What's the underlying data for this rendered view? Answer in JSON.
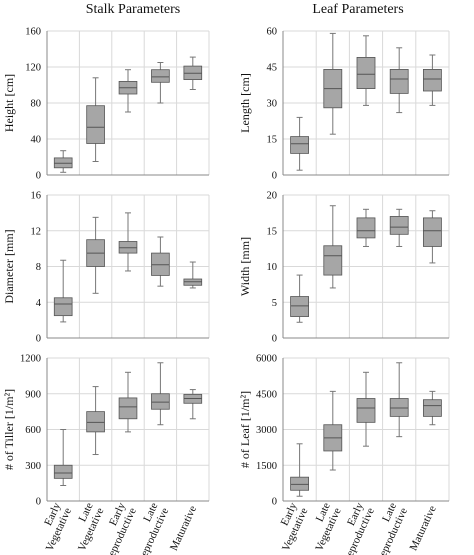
{
  "figure": {
    "column_titles": [
      "Stalk Parameters",
      "Leaf Parameters"
    ],
    "category_labels": [
      [
        "Early",
        "Vegetative"
      ],
      [
        "Late",
        "Vegetative"
      ],
      [
        "Early",
        "Reproductive"
      ],
      [
        "Late",
        "Reproductive"
      ],
      [
        "Maturative"
      ]
    ]
  },
  "colors": {
    "box_fill": "#a6a6a6",
    "box_stroke": "#555555",
    "whisker": "#777777",
    "grid": "#d9d9d9",
    "axis": "#888888"
  },
  "chart_data": [
    {
      "type": "box",
      "panel": "stalk-height",
      "ylabel": "Height [cm]",
      "ylim": [
        0,
        160
      ],
      "yticks": [
        0,
        40,
        80,
        120,
        160
      ],
      "categories": [
        "Early Vegetative",
        "Late Vegetative",
        "Early Reproductive",
        "Late Reproductive",
        "Maturative"
      ],
      "boxes": [
        {
          "min": 3,
          "q1": 8,
          "median": 13,
          "q3": 19,
          "max": 27
        },
        {
          "min": 15,
          "q1": 35,
          "median": 53,
          "q3": 77,
          "max": 108
        },
        {
          "min": 70,
          "q1": 90,
          "median": 97,
          "q3": 104,
          "max": 117
        },
        {
          "min": 80,
          "q1": 103,
          "median": 109,
          "q3": 117,
          "max": 125
        },
        {
          "min": 95,
          "q1": 106,
          "median": 113,
          "q3": 121,
          "max": 131
        }
      ]
    },
    {
      "type": "box",
      "panel": "stalk-diameter",
      "ylabel": "Diameter [mm]",
      "ylim": [
        0,
        16
      ],
      "yticks": [
        0,
        4,
        8,
        12,
        16
      ],
      "categories": [
        "Early Vegetative",
        "Late Vegetative",
        "Early Reproductive",
        "Late Reproductive",
        "Maturative"
      ],
      "boxes": [
        {
          "min": 1.8,
          "q1": 2.5,
          "median": 3.8,
          "q3": 4.5,
          "max": 8.7
        },
        {
          "min": 5.0,
          "q1": 8.0,
          "median": 9.5,
          "q3": 11.0,
          "max": 13.5
        },
        {
          "min": 7.5,
          "q1": 9.5,
          "median": 10.1,
          "q3": 10.8,
          "max": 14.0
        },
        {
          "min": 5.8,
          "q1": 7.0,
          "median": 8.2,
          "q3": 9.5,
          "max": 11.3
        },
        {
          "min": 5.6,
          "q1": 5.9,
          "median": 6.3,
          "q3": 6.6,
          "max": 8.5
        }
      ]
    },
    {
      "type": "box",
      "panel": "stalk-tiller",
      "ylabel": "# of Tiller [1/m²]",
      "ylim": [
        0,
        1200
      ],
      "yticks": [
        0,
        300,
        600,
        900,
        1200
      ],
      "categories": [
        "Early Vegetative",
        "Late Vegetative",
        "Early Reproductive",
        "Late Reproductive",
        "Maturative"
      ],
      "boxes": [
        {
          "min": 130,
          "q1": 190,
          "median": 235,
          "q3": 300,
          "max": 600
        },
        {
          "min": 390,
          "q1": 580,
          "median": 660,
          "q3": 750,
          "max": 960
        },
        {
          "min": 580,
          "q1": 690,
          "median": 790,
          "q3": 865,
          "max": 1080
        },
        {
          "min": 640,
          "q1": 770,
          "median": 830,
          "q3": 900,
          "max": 1160
        },
        {
          "min": 690,
          "q1": 820,
          "median": 860,
          "q3": 895,
          "max": 935
        }
      ]
    },
    {
      "type": "box",
      "panel": "leaf-length",
      "ylabel": "Length [cm]",
      "ylim": [
        0,
        60
      ],
      "yticks": [
        0,
        15,
        30,
        45,
        60
      ],
      "categories": [
        "Early Vegetative",
        "Late Vegetative",
        "Early Reproductive",
        "Late Reproductive",
        "Maturative"
      ],
      "boxes": [
        {
          "min": 2,
          "q1": 9,
          "median": 13,
          "q3": 16,
          "max": 24
        },
        {
          "min": 17,
          "q1": 28,
          "median": 36,
          "q3": 44,
          "max": 59
        },
        {
          "min": 29,
          "q1": 36,
          "median": 42,
          "q3": 49,
          "max": 58
        },
        {
          "min": 26,
          "q1": 34,
          "median": 40,
          "q3": 44,
          "max": 53
        },
        {
          "min": 29,
          "q1": 35,
          "median": 40,
          "q3": 44,
          "max": 50
        }
      ]
    },
    {
      "type": "box",
      "panel": "leaf-width",
      "ylabel": "Width [mm]",
      "ylim": [
        0,
        20
      ],
      "yticks": [
        0,
        5,
        10,
        15,
        20
      ],
      "categories": [
        "Early Vegetative",
        "Late Vegetative",
        "Early Reproductive",
        "Late Reproductive",
        "Maturative"
      ],
      "boxes": [
        {
          "min": 2.2,
          "q1": 3.0,
          "median": 4.5,
          "q3": 5.8,
          "max": 8.8
        },
        {
          "min": 7.0,
          "q1": 8.8,
          "median": 11.5,
          "q3": 12.9,
          "max": 18.5
        },
        {
          "min": 12.8,
          "q1": 14.0,
          "median": 15.0,
          "q3": 16.8,
          "max": 18.0
        },
        {
          "min": 12.8,
          "q1": 14.5,
          "median": 15.5,
          "q3": 17.0,
          "max": 18.0
        },
        {
          "min": 10.5,
          "q1": 12.8,
          "median": 15.0,
          "q3": 16.8,
          "max": 17.8
        }
      ]
    },
    {
      "type": "box",
      "panel": "leaf-count",
      "ylabel": "# of Leaf [1/m²]",
      "ylim": [
        0,
        6000
      ],
      "yticks": [
        0,
        1500,
        3000,
        4500,
        6000
      ],
      "categories": [
        "Early Vegetative",
        "Late Vegetative",
        "Early Reproductive",
        "Late Reproductive",
        "Maturative"
      ],
      "boxes": [
        {
          "min": 200,
          "q1": 450,
          "median": 700,
          "q3": 1000,
          "max": 2400
        },
        {
          "min": 1300,
          "q1": 2100,
          "median": 2650,
          "q3": 3200,
          "max": 4600
        },
        {
          "min": 2300,
          "q1": 3300,
          "median": 3900,
          "q3": 4300,
          "max": 5400
        },
        {
          "min": 2700,
          "q1": 3550,
          "median": 3900,
          "q3": 4300,
          "max": 5800
        },
        {
          "min": 3200,
          "q1": 3550,
          "median": 4000,
          "q3": 4250,
          "max": 4600
        }
      ]
    }
  ]
}
